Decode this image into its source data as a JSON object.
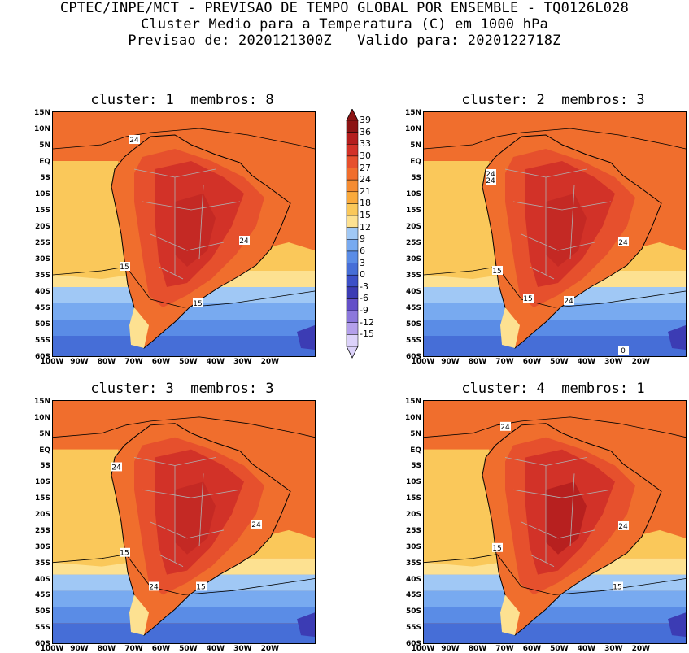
{
  "header": {
    "line1": "CPTEC/INPE/MCT - PREVISAO DE TEMPO GLOBAL POR ENSEMBLE - TQ0126L028",
    "line2": "Cluster Medio para a Temperatura (C) em 1000 hPa",
    "line3": "Previsao de: 2020121300Z   Valido para: 2020122718Z"
  },
  "panels": [
    {
      "title": "cluster: 1  membros: 8",
      "contour_labels": [
        "24",
        "15",
        "15",
        "24"
      ]
    },
    {
      "title": "cluster: 2  membros: 3",
      "contour_labels": [
        "24",
        "24",
        "15",
        "15",
        "24",
        "24",
        "0"
      ]
    },
    {
      "title": "cluster: 3  membros: 3",
      "contour_labels": [
        "24",
        "15",
        "24",
        "24",
        "15"
      ]
    },
    {
      "title": "cluster: 4  membros: 1",
      "contour_labels": [
        "24",
        "15",
        "15",
        "24"
      ]
    }
  ],
  "axes": {
    "lat_labels": [
      "15N",
      "10N",
      "5N",
      "EQ",
      "5S",
      "10S",
      "15S",
      "20S",
      "25S",
      "30S",
      "35S",
      "40S",
      "45S",
      "50S",
      "55S",
      "60S"
    ],
    "lon_labels": [
      "100W",
      "90W",
      "80W",
      "70W",
      "60W",
      "50W",
      "40W",
      "30W",
      "20W"
    ]
  },
  "colorbar": {
    "labels": [
      "39",
      "36",
      "33",
      "30",
      "27",
      "24",
      "21",
      "18",
      "15",
      "12",
      "9",
      "6",
      "3",
      "0",
      "-3",
      "-6",
      "-9",
      "-12",
      "-15"
    ],
    "colors": [
      "#8c1414",
      "#b41e1e",
      "#d23228",
      "#e6502d",
      "#f06e2d",
      "#f58c32",
      "#faaa3c",
      "#fac85a",
      "#fde191",
      "#a0c8f5",
      "#78aaf0",
      "#5a8ce6",
      "#466ed7",
      "#3c50c8",
      "#3c3cb4",
      "#6450c8",
      "#8c78dc",
      "#b4a0eb",
      "#dcd2fa"
    ]
  }
}
